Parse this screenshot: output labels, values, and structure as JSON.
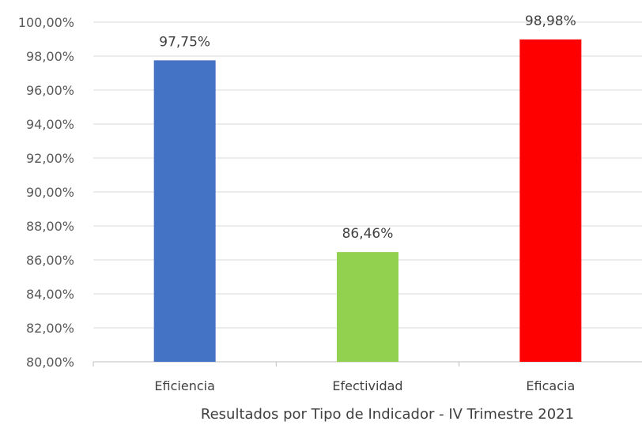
{
  "chart_data": {
    "type": "bar",
    "categories": [
      "Eficiencia",
      "Efectividad",
      "Eficacia"
    ],
    "values": [
      97.75,
      86.46,
      98.98
    ],
    "data_labels": [
      "97,75%",
      "86,46%",
      "98,98%"
    ],
    "colors": [
      "#4472c4",
      "#92d050",
      "#ff0000"
    ],
    "ylim": [
      80,
      100
    ],
    "yticks": [
      80,
      82,
      84,
      86,
      88,
      90,
      92,
      94,
      96,
      98,
      100
    ],
    "ytick_labels": [
      "80,00%",
      "82,00%",
      "84,00%",
      "86,00%",
      "88,00%",
      "90,00%",
      "92,00%",
      "94,00%",
      "96,00%",
      "98,00%",
      "100,00%"
    ],
    "xlabel": "Resultados por Tipo de Indicador - IV Trimestre 2021",
    "ylabel": "",
    "grid": true,
    "legend": "none"
  }
}
